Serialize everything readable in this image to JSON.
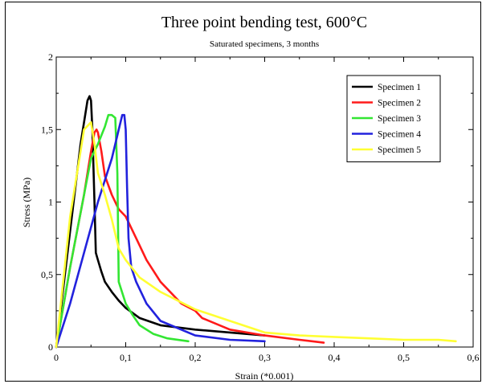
{
  "chart_data": {
    "type": "line",
    "title": "Three point bending test, 600°C",
    "subtitle": "Saturated specimens, 3 months",
    "xlabel": "Strain (*0.001)",
    "ylabel": "Stress (MPa)",
    "xlim": [
      0,
      0.6
    ],
    "ylim": [
      0,
      2
    ],
    "xticks": [
      0,
      0.1,
      0.2,
      0.3,
      0.4,
      0.5,
      0.6
    ],
    "yticks": [
      0,
      0.5,
      1,
      1.5,
      2
    ],
    "xtick_labels": [
      "0",
      "0,1",
      "0,2",
      "0,3",
      "0,4",
      "0,5",
      "0,6"
    ],
    "ytick_labels": [
      "0",
      "0,5",
      "1",
      "1,5",
      "2"
    ],
    "grid": false,
    "legend_position": "top-right",
    "series": [
      {
        "name": "Specimen 1",
        "color": "#000000",
        "x": [
          0,
          0.02,
          0.035,
          0.045,
          0.048,
          0.05,
          0.052,
          0.055,
          0.057,
          0.06,
          0.065,
          0.07,
          0.08,
          0.09,
          0.1,
          0.12,
          0.15,
          0.2,
          0.25,
          0.3
        ],
        "y": [
          0,
          0.8,
          1.4,
          1.7,
          1.73,
          1.7,
          1.5,
          1.0,
          0.65,
          0.6,
          0.52,
          0.45,
          0.38,
          0.32,
          0.27,
          0.2,
          0.15,
          0.12,
          0.1,
          0.08
        ]
      },
      {
        "name": "Specimen 2",
        "color": "#ff1a1a",
        "x": [
          0,
          0.02,
          0.04,
          0.05,
          0.055,
          0.058,
          0.06,
          0.065,
          0.07,
          0.08,
          0.09,
          0.1,
          0.11,
          0.115,
          0.12,
          0.13,
          0.15,
          0.18,
          0.2,
          0.21,
          0.25,
          0.3,
          0.35,
          0.385
        ],
        "y": [
          0,
          0.55,
          1.05,
          1.35,
          1.48,
          1.5,
          1.48,
          1.35,
          1.18,
          1.05,
          0.95,
          0.9,
          0.8,
          0.75,
          0.7,
          0.6,
          0.45,
          0.3,
          0.25,
          0.2,
          0.12,
          0.08,
          0.05,
          0.03
        ]
      },
      {
        "name": "Specimen 3",
        "color": "#33e633",
        "x": [
          0,
          0.02,
          0.04,
          0.05,
          0.06,
          0.07,
          0.075,
          0.08,
          0.085,
          0.088,
          0.09,
          0.1,
          0.11,
          0.12,
          0.14,
          0.16,
          0.19
        ],
        "y": [
          0,
          0.55,
          1.05,
          1.3,
          1.4,
          1.52,
          1.6,
          1.6,
          1.58,
          1.2,
          0.45,
          0.3,
          0.22,
          0.15,
          0.09,
          0.06,
          0.04
        ]
      },
      {
        "name": "Specimen 4",
        "color": "#2222dd",
        "x": [
          0,
          0.02,
          0.04,
          0.06,
          0.08,
          0.09,
          0.095,
          0.098,
          0.1,
          0.102,
          0.104,
          0.108,
          0.115,
          0.13,
          0.15,
          0.2,
          0.25,
          0.3
        ],
        "y": [
          0,
          0.3,
          0.65,
          1.0,
          1.3,
          1.5,
          1.6,
          1.6,
          1.5,
          1.1,
          0.75,
          0.55,
          0.45,
          0.3,
          0.18,
          0.08,
          0.05,
          0.04
        ]
      },
      {
        "name": "Specimen 5",
        "color": "#ffff33",
        "x": [
          0,
          0.02,
          0.04,
          0.05,
          0.055,
          0.06,
          0.07,
          0.08,
          0.09,
          0.1,
          0.12,
          0.15,
          0.2,
          0.25,
          0.3,
          0.35,
          0.4,
          0.45,
          0.5,
          0.55,
          0.575
        ],
        "y": [
          0,
          0.9,
          1.5,
          1.55,
          1.4,
          1.2,
          1.05,
          0.88,
          0.68,
          0.6,
          0.48,
          0.38,
          0.26,
          0.18,
          0.1,
          0.08,
          0.07,
          0.06,
          0.05,
          0.05,
          0.04
        ]
      }
    ]
  }
}
